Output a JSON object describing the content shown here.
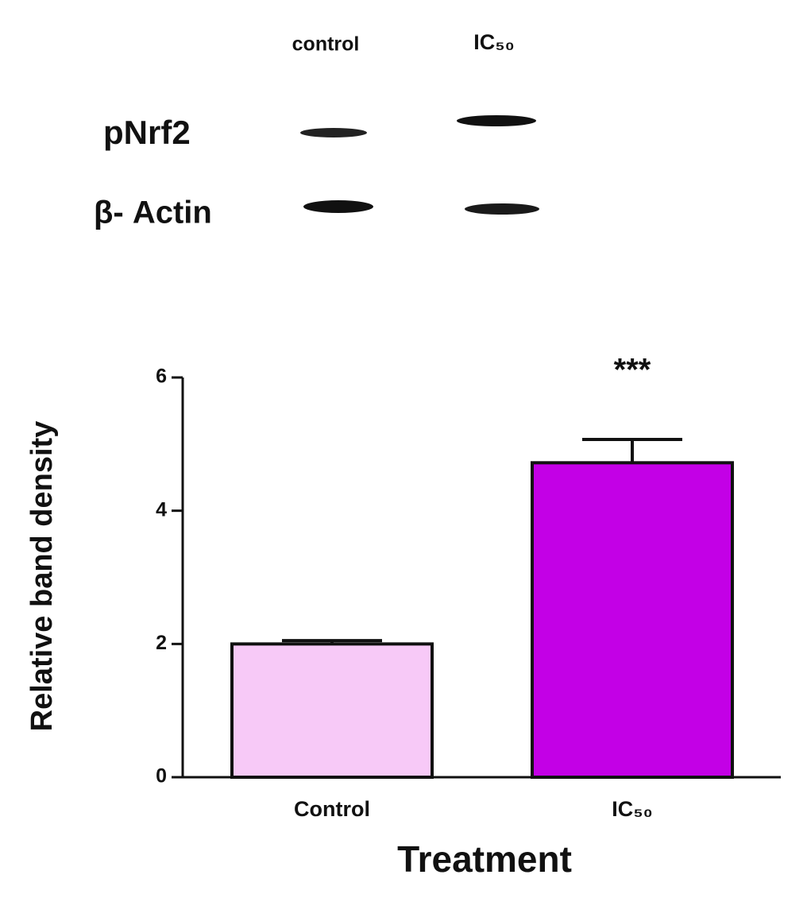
{
  "blot": {
    "lane_labels": [
      "control",
      "IC₅₀"
    ],
    "row_labels": [
      "pNrf2",
      "β- Actin"
    ]
  },
  "chart_data": {
    "type": "bar",
    "ylabel": "Relative band density",
    "xlabel": "Treatment",
    "categories": [
      "Control",
      "IC₅₀"
    ],
    "values": [
      2.0,
      4.72
    ],
    "errors": [
      0.05,
      0.35
    ],
    "colors": [
      "#f7c9f7",
      "#c300e6"
    ],
    "annotation": "***",
    "ylim": [
      0,
      6
    ],
    "yticks": [
      0,
      2,
      4,
      6
    ]
  }
}
